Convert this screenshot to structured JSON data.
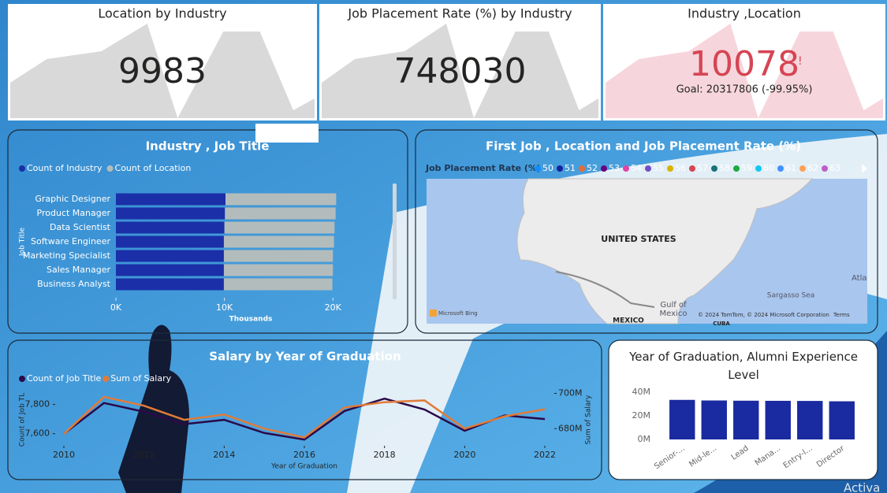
{
  "cards": [
    {
      "title": "Location by Industry",
      "value": 9983
    },
    {
      "title": "Job Placement Rate (%) by Industry",
      "value": 748030
    },
    {
      "title": "Industry ,Location",
      "value": 10078,
      "alert": "!",
      "goal": "Goal: 20317806 (-99.95%)"
    }
  ],
  "chart_data": [
    {
      "type": "bar",
      "orientation": "horizontal",
      "stacked": true,
      "title": "Industry , Job Title",
      "categories": [
        "Graphic Designer",
        "Product Manager",
        "Data Scientist",
        "Software Engineer",
        "Marketing Specialist",
        "Sales Manager",
        "Business Analyst"
      ],
      "series": [
        {
          "name": "Count of Industry",
          "color": "#1a2fa8",
          "values": [
            10100,
            10050,
            10000,
            9950,
            9950,
            9950,
            9950
          ]
        },
        {
          "name": "Count of Location",
          "color": "#b3bcbc",
          "values": [
            10200,
            10200,
            10150,
            10150,
            10050,
            10050,
            10000
          ]
        }
      ],
      "xlim": [
        0,
        21000
      ],
      "xticks": [
        {
          "value": 0,
          "label": "0K"
        },
        {
          "value": 10000,
          "label": "10K"
        },
        {
          "value": 20000,
          "label": "20K"
        }
      ],
      "xlabel": "Thousands",
      "ylabel": "Job Title"
    },
    {
      "type": "map",
      "title": "First Job , Location and Job Placement Rate (%)",
      "legend_title": "Job Placement Rate (%)",
      "series": [
        {
          "name": "50",
          "color": "#118dff"
        },
        {
          "name": "51",
          "color": "#12239e"
        },
        {
          "name": "52",
          "color": "#e66c37"
        },
        {
          "name": "53",
          "color": "#6b007b"
        },
        {
          "name": "54",
          "color": "#e044a7"
        },
        {
          "name": "55",
          "color": "#744ec2"
        },
        {
          "name": "56",
          "color": "#d9b300"
        },
        {
          "name": "57",
          "color": "#d64550"
        },
        {
          "name": "58",
          "color": "#197278"
        },
        {
          "name": "59",
          "color": "#1aab40"
        },
        {
          "name": "60",
          "color": "#15c6f4"
        },
        {
          "name": "61",
          "color": "#4092ff"
        },
        {
          "name": "62",
          "color": "#ffa058"
        },
        {
          "name": "63",
          "color": "#be5dc9"
        }
      ],
      "labels": [
        "UNITED STATES",
        "Gulf of",
        "Mexico",
        "MEXICO",
        "Sargasso Sea",
        "Atla",
        "CUBA",
        "Microsoft Bing",
        "© 2024 TomTom, © 2024 Microsoft Corporation",
        "Terms"
      ]
    },
    {
      "type": "line",
      "title": "Salary by Year of Graduation",
      "x": [
        2010,
        2011,
        2012,
        2013,
        2014,
        2015,
        2016,
        2017,
        2018,
        2019,
        2020,
        2021,
        2022
      ],
      "series": [
        {
          "name": "Count of Job Title",
          "color": "#2a0a4a",
          "values": [
            7600,
            7810,
            7750,
            7665,
            7695,
            7605,
            7560,
            7755,
            7840,
            7765,
            7620,
            7725,
            7700
          ]
        },
        {
          "name": "Sum of Salary",
          "color": "#e07b39",
          "axis": "y2",
          "values": [
            677000000,
            698000000,
            693000000,
            685000000,
            688000000,
            680000000,
            675000000,
            692000000,
            695000000,
            696000000,
            680000000,
            687000000,
            691000000
          ]
        }
      ],
      "xlim": [
        2010,
        2022
      ],
      "xticks": [
        2010,
        2012,
        2014,
        2016,
        2018,
        2020,
        2022
      ],
      "ylim": [
        7550,
        7900
      ],
      "yticks": [
        {
          "value": 7600,
          "label": "7,600"
        },
        {
          "value": 7800,
          "label": "7,800"
        }
      ],
      "y2lim": [
        673000000,
        702000000
      ],
      "y2ticks": [
        {
          "value": 680000000,
          "label": "680M"
        },
        {
          "value": 700000000,
          "label": "700M"
        }
      ],
      "xlabel": "Year of Graduation",
      "ylabel": "Count of Job TL",
      "y2label": "Sum of Salary"
    },
    {
      "type": "column",
      "title": "Year of Graduation, Alumni Experience Level",
      "categories": [
        "Senior-...",
        "Mid-le...",
        "Lead",
        "Mana...",
        "Entry-l...",
        "Director"
      ],
      "values": [
        33500000,
        33000000,
        32800000,
        32700000,
        32600000,
        32300000
      ],
      "color": "#1a2aa0",
      "ylim": [
        0,
        40000000
      ],
      "yticks": [
        {
          "value": 0,
          "label": "0M"
        },
        {
          "value": 20000000,
          "label": "20M"
        },
        {
          "value": 40000000,
          "label": "40M"
        }
      ]
    }
  ],
  "watermark": "Activa"
}
